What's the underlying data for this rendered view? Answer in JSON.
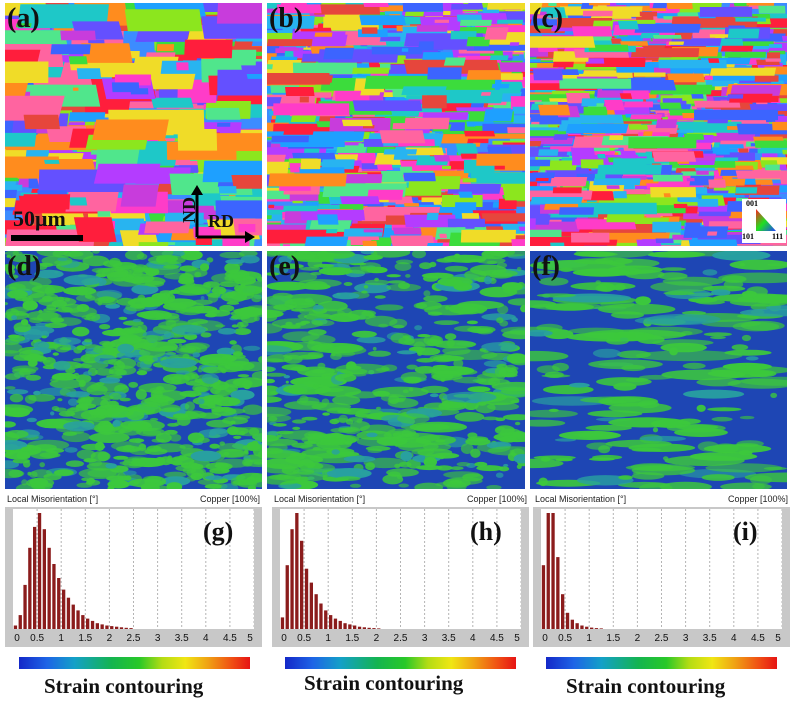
{
  "panels": {
    "a": "(a)",
    "b": "(b)",
    "c": "(c)",
    "d": "(d)",
    "e": "(e)",
    "f": "(f)",
    "g": "(g)",
    "h": "(h)",
    "i": "(i)"
  },
  "scale_bar": "50μm",
  "axes": {
    "nd": "ND",
    "rd": "RD"
  },
  "ipf_key": {
    "top": "001",
    "left": "101",
    "right": "111"
  },
  "histogram_header": {
    "left": "Local Misorientation [°]",
    "right": "Copper [100%]"
  },
  "colorbar_title": "Strain contouring",
  "colors": {
    "bar": "#8b1c1c",
    "kam_background": "#1e46b4",
    "kam_strain": "#3cc83c"
  },
  "chart_data": [
    {
      "type": "bar",
      "panel": "g",
      "xlabel": "Local Misorientation [°]",
      "xlim": [
        0,
        5
      ],
      "x_ticks": [
        "0",
        "0.5",
        "1",
        "1.5",
        "2",
        "2.5",
        "3",
        "3.5",
        "4",
        "4.5",
        "5"
      ],
      "bin_width": 0.1,
      "bin_centers": [
        0.05,
        0.15,
        0.25,
        0.35,
        0.45,
        0.55,
        0.65,
        0.75,
        0.85,
        0.95,
        1.05,
        1.15,
        1.25,
        1.35,
        1.45,
        1.55,
        1.65,
        1.75,
        1.85,
        1.95,
        2.05,
        2.15,
        2.25,
        2.35,
        2.45
      ],
      "values": [
        0.03,
        0.12,
        0.38,
        0.7,
        0.88,
        1.0,
        0.86,
        0.7,
        0.56,
        0.44,
        0.34,
        0.27,
        0.21,
        0.16,
        0.12,
        0.09,
        0.07,
        0.05,
        0.04,
        0.03,
        0.025,
        0.02,
        0.015,
        0.01,
        0.008
      ],
      "y_units": "relative frequency (normalized to peak)"
    },
    {
      "type": "bar",
      "panel": "h",
      "xlabel": "Local Misorientation [°]",
      "xlim": [
        0,
        5
      ],
      "x_ticks": [
        "0",
        "0.5",
        "1",
        "1.5",
        "2",
        "2.5",
        "3",
        "3.5",
        "4",
        "4.5",
        "5"
      ],
      "bin_width": 0.1,
      "bin_centers": [
        0.05,
        0.15,
        0.25,
        0.35,
        0.45,
        0.55,
        0.65,
        0.75,
        0.85,
        0.95,
        1.05,
        1.15,
        1.25,
        1.35,
        1.45,
        1.55,
        1.65,
        1.75,
        1.85,
        1.95,
        2.05
      ],
      "values": [
        0.1,
        0.55,
        0.86,
        1.0,
        0.76,
        0.52,
        0.4,
        0.3,
        0.22,
        0.16,
        0.12,
        0.09,
        0.07,
        0.05,
        0.04,
        0.03,
        0.02,
        0.015,
        0.01,
        0.008,
        0.005
      ],
      "y_units": "relative frequency (normalized to peak)"
    },
    {
      "type": "bar",
      "panel": "i",
      "xlabel": "Local Misorientation [°]",
      "xlim": [
        0,
        5
      ],
      "x_ticks": [
        "0",
        "0.5",
        "1",
        "1.5",
        "2",
        "2.5",
        "3",
        "3.5",
        "4",
        "4.5",
        "5"
      ],
      "bin_width": 0.1,
      "bin_centers": [
        0.05,
        0.15,
        0.25,
        0.35,
        0.45,
        0.55,
        0.65,
        0.75,
        0.85,
        0.95,
        1.05,
        1.15,
        1.25
      ],
      "values": [
        0.55,
        1.0,
        1.0,
        0.62,
        0.3,
        0.14,
        0.08,
        0.05,
        0.03,
        0.02,
        0.012,
        0.008,
        0.005
      ],
      "y_units": "relative frequency (normalized to peak)"
    }
  ]
}
